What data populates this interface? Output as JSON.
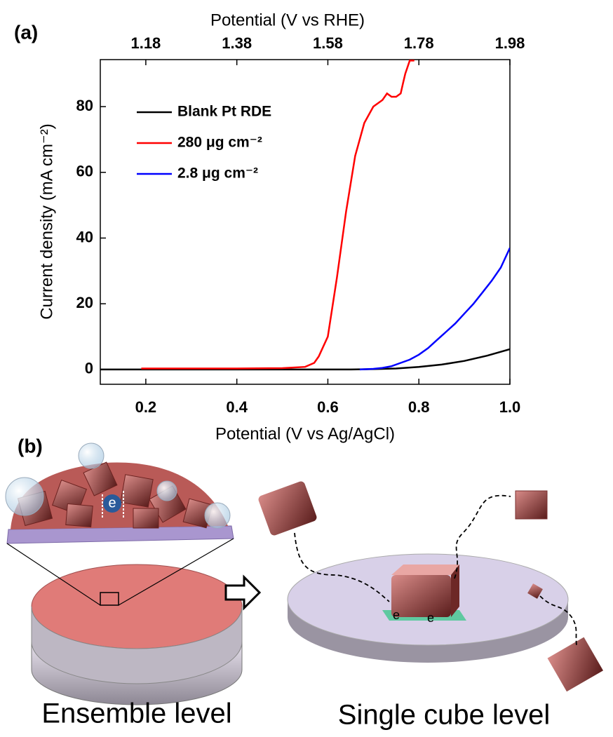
{
  "chart_data": {
    "type": "line",
    "xlabel": "Potential (V vs Ag/AgCl)",
    "x2label": "Potential (V vs RHE)",
    "ylabel": "Current density (mA cm⁻²)",
    "xlim": [
      0.1,
      1.0
    ],
    "xticks": [
      {
        "value": 0.2,
        "label": "0.2"
      },
      {
        "value": 0.4,
        "label": "0.4"
      },
      {
        "value": 0.6,
        "label": "0.6"
      },
      {
        "value": 0.8,
        "label": "0.8"
      },
      {
        "value": 1.0,
        "label": "1.0"
      }
    ],
    "x2lim": [
      1.08,
      1.98
    ],
    "x2ticks": [
      1.18,
      1.38,
      1.58,
      1.78,
      1.98
    ],
    "ylim": [
      -4.5,
      94.3
    ],
    "yticks": [
      0,
      20,
      40,
      60,
      80
    ],
    "legend": "upper left",
    "series": [
      {
        "name": "Blank Pt RDE",
        "color": "#000000",
        "x": [
          0.1,
          0.2,
          0.3,
          0.4,
          0.5,
          0.6,
          0.65,
          0.7,
          0.75,
          0.8,
          0.85,
          0.9,
          0.95,
          1.0
        ],
        "values": [
          0,
          0,
          0,
          0,
          0,
          0,
          0,
          0.1,
          0.3,
          0.8,
          1.5,
          2.6,
          4.2,
          6.2
        ]
      },
      {
        "name": "280 μg cm⁻²",
        "color": "#ff0000",
        "x": [
          0.19,
          0.3,
          0.4,
          0.5,
          0.55,
          0.57,
          0.58,
          0.6,
          0.62,
          0.64,
          0.66,
          0.68,
          0.7,
          0.72,
          0.73,
          0.74,
          0.75,
          0.76,
          0.765,
          0.77,
          0.78,
          0.79
        ],
        "values": [
          0.3,
          0.3,
          0.3,
          0.4,
          0.8,
          2,
          4,
          10,
          28,
          48,
          65,
          75,
          80,
          82,
          84,
          83,
          83,
          84,
          87,
          90,
          94,
          94
        ]
      },
      {
        "name": "2.8 μg cm⁻²",
        "color": "#0000ff",
        "x": [
          0.67,
          0.7,
          0.72,
          0.74,
          0.76,
          0.78,
          0.8,
          0.82,
          0.84,
          0.86,
          0.88,
          0.9,
          0.92,
          0.94,
          0.96,
          0.98,
          1.0
        ],
        "values": [
          0,
          0.2,
          0.5,
          1,
          2,
          3,
          4.5,
          6.5,
          9,
          11.5,
          14,
          17,
          20,
          23.5,
          27,
          31,
          37
        ]
      }
    ]
  },
  "panel_labels": [
    "(a)",
    "(b)"
  ],
  "illustration": {
    "left_caption": "Ensemble level",
    "right_caption": "Single cube level",
    "electron_label": "e"
  }
}
